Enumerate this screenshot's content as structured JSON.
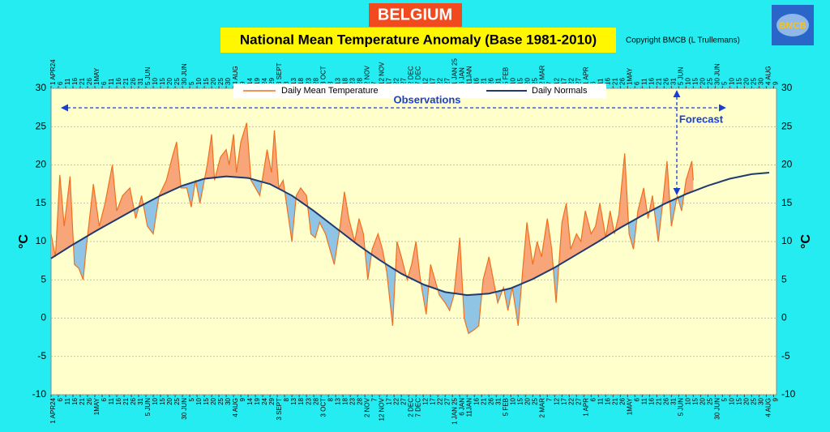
{
  "chart_data": {
    "type": "line",
    "title": "BELGIUM",
    "subtitle": "National Mean Temperature Anomaly (Base 1981-2010)",
    "copyright": "Copyright BMCB (L Trullemans)",
    "logo": "BMCB",
    "y_label": "°C",
    "annotations": {
      "observations": "Observations",
      "forecast": "Forecast"
    },
    "fill_above": "#f9a57a",
    "fill_below": "#8fc4e4",
    "grid": true,
    "xlim": [
      0,
      497
    ],
    "ylim": [
      -10,
      30
    ],
    "yticks": [
      -10,
      -5,
      0,
      5,
      10,
      15,
      20,
      25,
      30
    ],
    "xticks": [
      {
        "value": 0,
        "label": "1 APR24"
      },
      {
        "value": 5,
        "label": "6"
      },
      {
        "value": 10,
        "label": "11"
      },
      {
        "value": 15,
        "label": "16"
      },
      {
        "value": 20,
        "label": "21"
      },
      {
        "value": 25,
        "label": "26"
      },
      {
        "value": 30,
        "label": "1MAY"
      },
      {
        "value": 35,
        "label": "6"
      },
      {
        "value": 40,
        "label": "11"
      },
      {
        "value": 45,
        "label": "16"
      },
      {
        "value": 50,
        "label": "21"
      },
      {
        "value": 55,
        "label": "26"
      },
      {
        "value": 60,
        "label": "31"
      },
      {
        "value": 65,
        "label": "5 JUN"
      },
      {
        "value": 70,
        "label": "10"
      },
      {
        "value": 75,
        "label": "15"
      },
      {
        "value": 80,
        "label": "20"
      },
      {
        "value": 85,
        "label": "25"
      },
      {
        "value": 90,
        "label": "30 JUN"
      },
      {
        "value": 95,
        "label": "5"
      },
      {
        "value": 100,
        "label": "10"
      },
      {
        "value": 105,
        "label": "15"
      },
      {
        "value": 110,
        "label": "20"
      },
      {
        "value": 115,
        "label": "25"
      },
      {
        "value": 120,
        "label": "30"
      },
      {
        "value": 125,
        "label": "4 AUG"
      },
      {
        "value": 130,
        "label": "9"
      },
      {
        "value": 135,
        "label": "14"
      },
      {
        "value": 140,
        "label": "19"
      },
      {
        "value": 145,
        "label": "24"
      },
      {
        "value": 150,
        "label": "29"
      },
      {
        "value": 155,
        "label": "3 SEPT"
      },
      {
        "value": 160,
        "label": "8"
      },
      {
        "value": 165,
        "label": "13"
      },
      {
        "value": 170,
        "label": "18"
      },
      {
        "value": 175,
        "label": "23"
      },
      {
        "value": 180,
        "label": "28"
      },
      {
        "value": 185,
        "label": "3 OCT"
      },
      {
        "value": 190,
        "label": "8"
      },
      {
        "value": 195,
        "label": "13"
      },
      {
        "value": 200,
        "label": "18"
      },
      {
        "value": 205,
        "label": "23"
      },
      {
        "value": 210,
        "label": "28"
      },
      {
        "value": 215,
        "label": "2 NOV"
      },
      {
        "value": 220,
        "label": "7"
      },
      {
        "value": 225,
        "label": "12 NOV"
      },
      {
        "value": 230,
        "label": "17"
      },
      {
        "value": 235,
        "label": "22"
      },
      {
        "value": 240,
        "label": "27"
      },
      {
        "value": 245,
        "label": "2 DEC"
      },
      {
        "value": 250,
        "label": "7 DEC"
      },
      {
        "value": 255,
        "label": "12"
      },
      {
        "value": 260,
        "label": "17"
      },
      {
        "value": 265,
        "label": "22"
      },
      {
        "value": 270,
        "label": "27"
      },
      {
        "value": 275,
        "label": "1 JAN 25"
      },
      {
        "value": 280,
        "label": "6 JAN"
      },
      {
        "value": 285,
        "label": "11JAN"
      },
      {
        "value": 290,
        "label": "16"
      },
      {
        "value": 295,
        "label": "21"
      },
      {
        "value": 300,
        "label": "26"
      },
      {
        "value": 305,
        "label": "31"
      },
      {
        "value": 310,
        "label": "5 FEB"
      },
      {
        "value": 315,
        "label": "10"
      },
      {
        "value": 320,
        "label": "15"
      },
      {
        "value": 325,
        "label": "20"
      },
      {
        "value": 330,
        "label": "25"
      },
      {
        "value": 335,
        "label": "2 MAR"
      },
      {
        "value": 340,
        "label": "7"
      },
      {
        "value": 345,
        "label": "12"
      },
      {
        "value": 350,
        "label": "17"
      },
      {
        "value": 355,
        "label": "22"
      },
      {
        "value": 360,
        "label": "27"
      },
      {
        "value": 365,
        "label": "1 APR"
      },
      {
        "value": 370,
        "label": "6"
      },
      {
        "value": 375,
        "label": "11"
      },
      {
        "value": 380,
        "label": "16"
      },
      {
        "value": 385,
        "label": "21"
      },
      {
        "value": 390,
        "label": "26"
      },
      {
        "value": 395,
        "label": "1MAY"
      },
      {
        "value": 400,
        "label": "6"
      },
      {
        "value": 405,
        "label": "11"
      },
      {
        "value": 410,
        "label": "16"
      },
      {
        "value": 415,
        "label": "21"
      },
      {
        "value": 420,
        "label": "26"
      },
      {
        "value": 425,
        "label": "31"
      },
      {
        "value": 430,
        "label": "5 JUN"
      },
      {
        "value": 435,
        "label": "10"
      },
      {
        "value": 440,
        "label": "15"
      },
      {
        "value": 445,
        "label": "20"
      },
      {
        "value": 450,
        "label": "25"
      },
      {
        "value": 455,
        "label": "30 JUN"
      },
      {
        "value": 460,
        "label": "5"
      },
      {
        "value": 465,
        "label": "10"
      },
      {
        "value": 470,
        "label": "15"
      },
      {
        "value": 475,
        "label": "20"
      },
      {
        "value": 480,
        "label": "25"
      },
      {
        "value": 485,
        "label": "30"
      },
      {
        "value": 490,
        "label": "4 AUG"
      },
      {
        "value": 495,
        "label": "9"
      }
    ],
    "series": [
      {
        "name": "Daily Mean Temperature",
        "color": "#f0701e",
        "x": [
          0,
          3,
          6,
          9,
          13,
          16,
          19,
          22,
          24,
          29,
          33,
          37,
          42,
          45,
          49,
          54,
          58,
          62,
          66,
          70,
          74,
          79,
          83,
          86,
          89,
          93,
          96,
          99,
          102,
          107,
          110,
          112,
          116,
          120,
          122,
          125,
          127,
          130,
          134,
          137,
          140,
          143,
          148,
          151,
          153,
          156,
          159,
          162,
          165,
          168,
          171,
          175,
          178,
          181,
          184,
          188,
          191,
          194,
          198,
          201,
          204,
          208,
          211,
          214,
          217,
          220,
          224,
          227,
          230,
          234,
          237,
          240,
          244,
          247,
          250,
          253,
          257,
          260,
          263,
          266,
          270,
          273,
          276,
          280,
          283,
          286,
          290,
          293,
          296,
          300,
          303,
          306,
          310,
          313,
          316,
          320,
          323,
          326,
          330,
          333,
          336,
          340,
          343,
          346,
          350,
          353,
          356,
          360,
          363,
          366,
          370,
          373,
          376,
          380,
          383,
          386,
          389,
          393,
          396,
          399,
          402,
          406,
          409,
          412,
          416,
          419,
          422,
          425,
          429,
          432,
          435,
          439,
          440
        ],
        "values": [
          11,
          8,
          18.7,
          12,
          18.5,
          7,
          6.5,
          5,
          9,
          17.5,
          12,
          15,
          20,
          14,
          16,
          17,
          13,
          16,
          12,
          11,
          16,
          18,
          21,
          23,
          17,
          17,
          14.5,
          18,
          15,
          20,
          24,
          18,
          21,
          22,
          20,
          24,
          19,
          23,
          25.5,
          18,
          17,
          16,
          22,
          19,
          24.5,
          17,
          18,
          14,
          10,
          16,
          17,
          16,
          11,
          10.5,
          12.5,
          11,
          9,
          7,
          12,
          16.5,
          13,
          10,
          13,
          11,
          5,
          9,
          11,
          9,
          6,
          -1,
          10,
          8,
          5,
          7,
          10,
          5,
          0.5,
          7,
          5,
          3,
          2,
          1,
          3,
          10.5,
          0,
          -2,
          -1.5,
          -1,
          5,
          8,
          5,
          2,
          4,
          1,
          4,
          -1,
          6,
          12.5,
          7,
          10,
          8,
          13,
          9,
          2,
          12.5,
          15,
          9,
          11,
          10,
          14,
          11,
          12,
          15,
          10.5,
          14,
          11,
          13.5,
          21.5,
          11,
          9,
          14,
          17,
          13,
          16,
          10,
          15,
          20.5,
          12,
          16,
          14,
          18,
          20.5,
          18
        ]
      },
      {
        "name": "Daily Normals",
        "color": "#1f3a6e",
        "x": [
          0,
          15,
          30,
          45,
          60,
          75,
          90,
          105,
          120,
          135,
          150,
          165,
          180,
          195,
          210,
          225,
          240,
          255,
          270,
          285,
          300,
          315,
          330,
          345,
          360,
          375,
          390,
          405,
          420,
          435,
          450,
          465,
          480,
          492
        ],
        "values": [
          7.8,
          9.6,
          11.3,
          12.9,
          14.5,
          16.0,
          17.3,
          18.2,
          18.5,
          18.3,
          17.5,
          16.0,
          14.0,
          11.8,
          9.6,
          7.6,
          5.8,
          4.4,
          3.4,
          3.0,
          3.2,
          3.9,
          5.1,
          6.6,
          8.3,
          10.0,
          11.8,
          13.4,
          14.9,
          16.2,
          17.3,
          18.2,
          18.8,
          19.0
        ]
      }
    ]
  }
}
